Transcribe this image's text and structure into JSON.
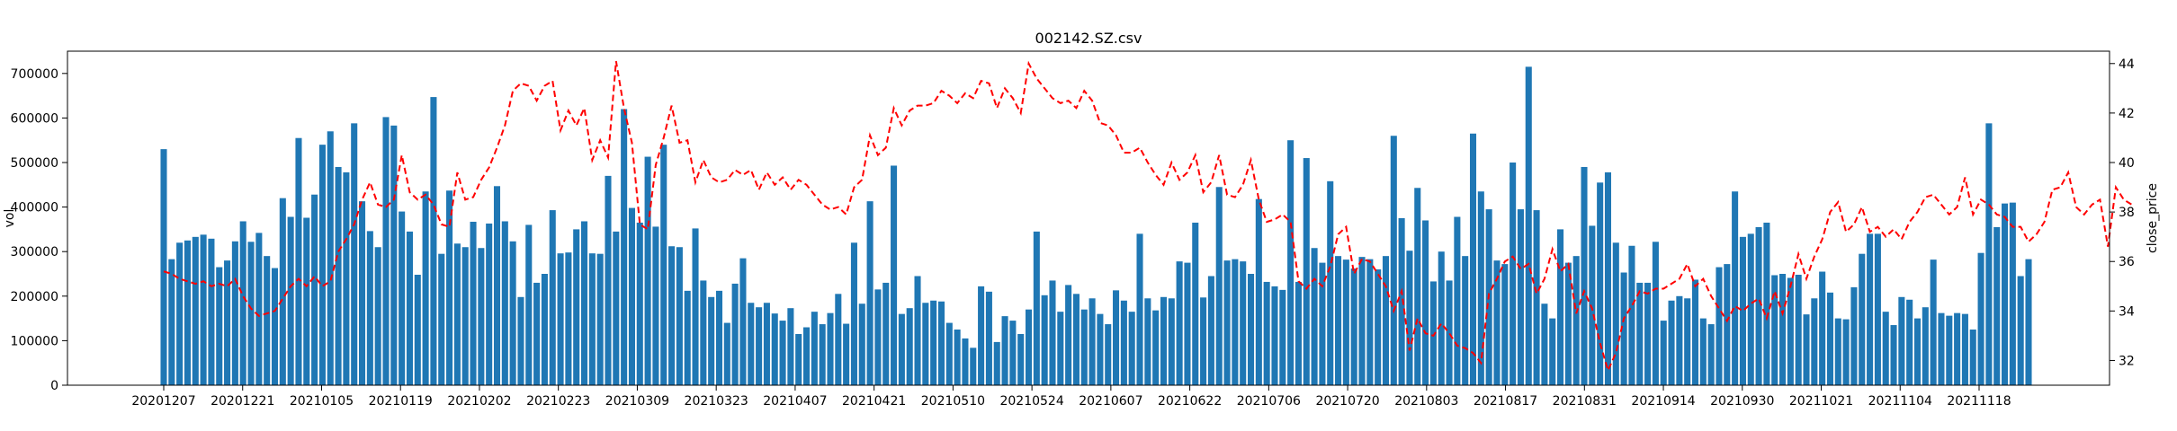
{
  "chart_data": {
    "type": "bar",
    "title": "002142.SZ.csv",
    "ylabel_left": "vol",
    "ylabel_right": "close_price",
    "xlabel": "",
    "x_tick_labels": [
      "20201207",
      "20201221",
      "20210105",
      "20210119",
      "20210202",
      "20210223",
      "20210309",
      "20210323",
      "20210407",
      "20210421",
      "20210510",
      "20210524",
      "20210607",
      "20210622",
      "20210706",
      "20210720",
      "20210803",
      "20210817",
      "20210831",
      "20210914",
      "20210930",
      "20211021",
      "20211104",
      "20211118"
    ],
    "ylim_left": [
      0,
      750000
    ],
    "yticks_left": [
      "0",
      "100000",
      "200000",
      "300000",
      "400000",
      "500000",
      "600000",
      "700000"
    ],
    "ylim_right": [
      31,
      44.5
    ],
    "yticks_right": [
      "32",
      "34",
      "36",
      "38",
      "40",
      "42",
      "44"
    ],
    "grid": false,
    "series": [
      {
        "name": "vol",
        "kind": "bar",
        "color": "#1f77b4",
        "values": [
          530000,
          283000,
          320000,
          325000,
          333000,
          338000,
          329000,
          265000,
          280000,
          323000,
          368000,
          322000,
          342000,
          290000,
          263000,
          420000,
          378000,
          555000,
          376000,
          428000,
          540000,
          570000,
          490000,
          478000,
          588000,
          413000,
          346000,
          310000,
          602000,
          583000,
          390000,
          345000,
          248000,
          435000,
          647000,
          295000,
          437000,
          318000,
          310000,
          367000,
          308000,
          363000,
          447000,
          368000,
          323000,
          198000,
          360000,
          230000,
          250000,
          393000,
          296000,
          298000,
          350000,
          368000,
          296000,
          295000,
          470000,
          345000,
          620000,
          398000,
          365000,
          513000,
          356000,
          540000,
          312000,
          310000,
          212000,
          352000,
          235000,
          198000,
          212000,
          140000,
          228000,
          285000,
          185000,
          175000,
          185000,
          161000,
          145000,
          173000,
          115000,
          130000,
          165000,
          137000,
          162000,
          205000,
          138000,
          320000,
          183000,
          413000,
          215000,
          230000,
          493000,
          160000,
          173000,
          245000,
          185000,
          190000,
          188000,
          140000,
          125000,
          105000,
          84000,
          222000,
          210000,
          97000,
          155000,
          145000,
          115000,
          170000,
          345000,
          202000,
          235000,
          165000,
          225000,
          205000,
          170000,
          195000,
          160000,
          137000,
          213000,
          190000,
          165000,
          340000,
          195000,
          168000,
          198000,
          195000,
          278000,
          275000,
          365000,
          197000,
          245000,
          445000,
          280000,
          283000,
          278000,
          250000,
          418000,
          232000,
          222000,
          214000,
          550000,
          232000,
          510000,
          308000,
          275000,
          458000,
          290000,
          282000,
          262000,
          288000,
          283000,
          260000,
          290000,
          560000,
          375000,
          302000,
          443000,
          370000,
          233000,
          300000,
          235000,
          378000,
          290000,
          565000,
          435000,
          395000,
          280000,
          272000,
          500000,
          395000,
          715000,
          393000,
          183000,
          150000,
          350000,
          275000,
          290000,
          490000,
          358000,
          455000,
          478000,
          320000,
          253000,
          313000,
          230000,
          230000,
          322000,
          145000,
          190000,
          200000,
          195000,
          237000,
          150000,
          137000,
          265000,
          272000,
          435000,
          333000,
          340000,
          355000,
          365000,
          247000,
          250000,
          241000,
          248000,
          159000,
          195000,
          255000,
          208000,
          150000,
          148000,
          220000,
          295000,
          340000,
          340000,
          165000,
          135000,
          198000,
          192000,
          150000,
          175000,
          282000,
          162000,
          156000,
          162000,
          160000,
          125000,
          297000,
          588000,
          355000,
          408000,
          410000,
          245000,
          283000
        ]
      },
      {
        "name": "close_price",
        "kind": "line",
        "style": "dashed",
        "color": "#ff0000",
        "values": [
          35.6,
          35.5,
          35.3,
          35.2,
          35.1,
          35.2,
          35.0,
          35.1,
          35.0,
          35.3,
          34.6,
          34.1,
          33.8,
          33.9,
          34.0,
          34.5,
          35.0,
          35.3,
          35.0,
          35.4,
          35.0,
          35.2,
          36.4,
          36.9,
          37.5,
          38.5,
          39.2,
          38.3,
          38.2,
          38.5,
          40.3,
          38.8,
          38.5,
          38.7,
          38.3,
          37.5,
          37.4,
          39.6,
          38.5,
          38.6,
          39.3,
          39.8,
          40.6,
          41.5,
          42.9,
          43.2,
          43.1,
          42.5,
          43.1,
          43.3,
          41.3,
          42.1,
          41.5,
          42.2,
          40.1,
          40.9,
          40.2,
          44.1,
          42.2,
          40.8,
          37.5,
          37.3,
          39.9,
          41.0,
          42.3,
          40.8,
          40.9,
          39.2,
          40.1,
          39.4,
          39.2,
          39.3,
          39.7,
          39.5,
          39.7,
          38.9,
          39.6,
          39.1,
          39.4,
          38.9,
          39.3,
          39.1,
          38.7,
          38.3,
          38.1,
          38.2,
          37.9,
          39.0,
          39.3,
          41.1,
          40.3,
          40.6,
          42.2,
          41.5,
          42.1,
          42.3,
          42.3,
          42.4,
          42.9,
          42.7,
          42.4,
          42.8,
          42.6,
          43.3,
          43.2,
          42.2,
          43.0,
          42.6,
          42.0,
          44.0,
          43.4,
          43.0,
          42.6,
          42.4,
          42.5,
          42.2,
          42.9,
          42.5,
          41.6,
          41.5,
          41.1,
          40.4,
          40.4,
          40.6,
          40.0,
          39.5,
          39.1,
          40.0,
          39.3,
          39.6,
          40.3,
          38.8,
          39.2,
          40.3,
          38.7,
          38.6,
          39.1,
          40.1,
          38.5,
          37.6,
          37.7,
          37.9,
          37.6,
          35.2,
          34.9,
          35.3,
          35.0,
          35.8,
          37.1,
          37.4,
          35.5,
          36.1,
          36.0,
          35.5,
          35.0,
          34.0,
          34.8,
          32.4,
          33.7,
          33.1,
          33.0,
          33.5,
          33.1,
          32.6,
          32.5,
          32.3,
          31.9,
          34.7,
          35.3,
          36.0,
          36.2,
          35.7,
          35.9,
          34.7,
          35.3,
          36.5,
          35.6,
          35.9,
          33.9,
          34.8,
          34.1,
          32.7,
          31.6,
          32.3,
          33.7,
          34.2,
          34.8,
          34.7,
          34.9,
          34.9,
          35.1,
          35.3,
          35.9,
          35.0,
          35.3,
          34.6,
          34.1,
          33.6,
          34.2,
          34.0,
          34.3,
          34.5,
          33.7,
          34.8,
          33.9,
          35.0,
          36.3,
          35.3,
          36.2,
          36.9,
          38.0,
          38.4,
          37.2,
          37.5,
          38.2,
          37.2,
          37.4,
          37.0,
          37.3,
          36.9,
          37.6,
          38.0,
          38.6,
          38.7,
          38.3,
          37.9,
          38.2,
          39.4,
          37.9,
          38.5,
          38.3,
          37.9,
          37.8,
          37.4,
          37.4,
          36.8,
          37.1,
          37.6,
          38.9,
          39.0,
          39.6,
          38.2,
          37.9,
          38.3,
          38.5,
          36.6,
          39.0,
          38.5,
          38.3
        ]
      }
    ]
  }
}
